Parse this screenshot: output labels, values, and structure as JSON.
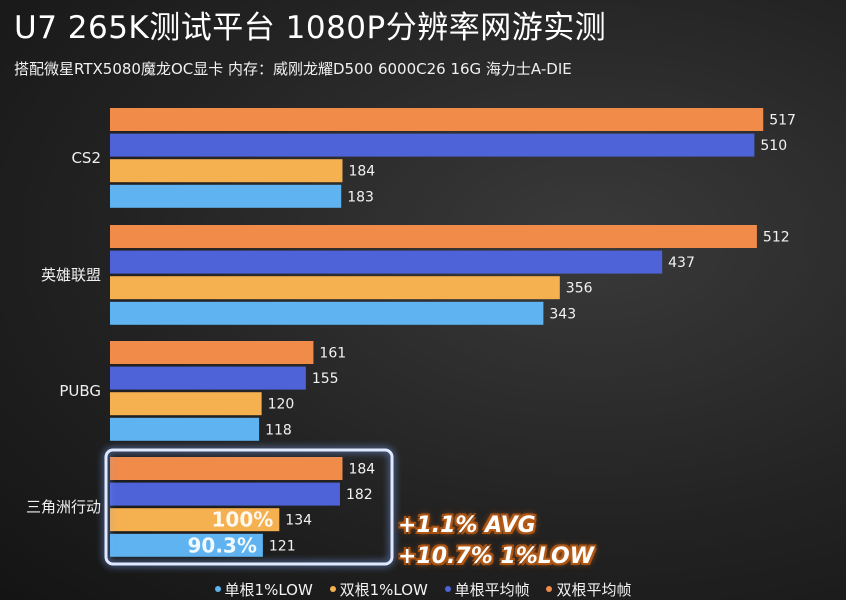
{
  "title": "U7 265K测试平台 1080P分辨率网游实测",
  "subtitle": "搭配微星RTX5080魔龙OC显卡 内存：威刚龙耀D500 6000C26 16G 海力士A-DIE",
  "annotations": {
    "avg": "+1.1% AVG",
    "low": "+10.7% 1%LOW"
  },
  "colors": {
    "single_1low": "#5eb3f0",
    "dual_1low": "#f5b050",
    "single_avg": "#4e63d8",
    "dual_avg": "#f08b4a",
    "highlight_border": "#dfe9ff"
  },
  "chart_data": {
    "type": "bar",
    "orientation": "horizontal",
    "categories": [
      "CS2",
      "英雄联盟",
      "PUBG",
      "三角洲行动"
    ],
    "series": [
      {
        "name": "双根平均帧",
        "values": [
          517,
          512,
          161,
          184
        ]
      },
      {
        "name": "单根平均帧",
        "values": [
          510,
          437,
          155,
          182
        ]
      },
      {
        "name": "双根1%LOW",
        "values": [
          184,
          356,
          120,
          134
        ]
      },
      {
        "name": "单根1%LOW",
        "values": [
          183,
          343,
          118,
          121
        ]
      }
    ],
    "bar_labels": {
      "三角洲行动": [
        "",
        "",
        "100%",
        "90.3%"
      ]
    },
    "legend": [
      "单根1%LOW",
      "双根1%LOW",
      "单根平均帧",
      "双根平均帧"
    ],
    "legend_position": "bottom",
    "xlim": [
      0,
      540
    ],
    "highlighted_category": "三角洲行动",
    "grid": false
  }
}
